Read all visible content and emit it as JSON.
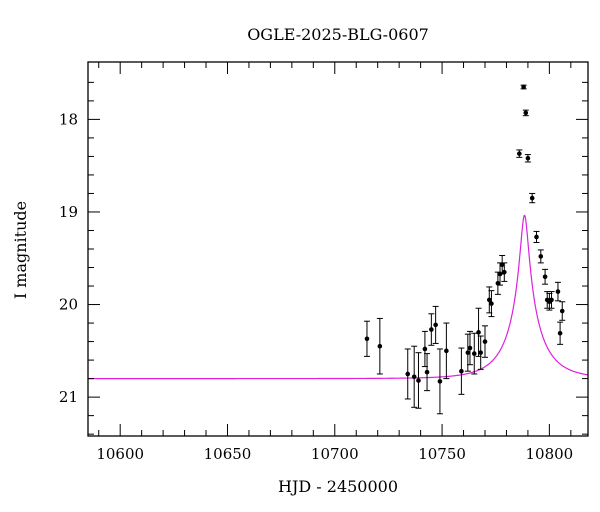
{
  "chart_data": {
    "type": "scatter",
    "title": "OGLE-2025-BLG-0607",
    "xlabel": "HJD - 2450000",
    "ylabel": "I magnitude",
    "xlim": [
      10585,
      10818
    ],
    "ylim": [
      21.42,
      17.38
    ],
    "y_inverted": true,
    "x_ticks": [
      10600,
      10650,
      10700,
      10750,
      10800
    ],
    "y_ticks": [
      18,
      19,
      20,
      21
    ],
    "grid": false,
    "legend": "none",
    "colors": {
      "points": "#000000",
      "model": "#e020e0"
    },
    "series": [
      {
        "type": "scatter-errorbars",
        "points": [
          {
            "x": 10715,
            "y": 20.37,
            "err": 0.19
          },
          {
            "x": 10721,
            "y": 20.45,
            "err": 0.3
          },
          {
            "x": 10734,
            "y": 20.75,
            "err": 0.27
          },
          {
            "x": 10737,
            "y": 20.78,
            "err": 0.33
          },
          {
            "x": 10739,
            "y": 20.82,
            "err": 0.3
          },
          {
            "x": 10742,
            "y": 20.48,
            "err": 0.19
          },
          {
            "x": 10743,
            "y": 20.73,
            "err": 0.2
          },
          {
            "x": 10745,
            "y": 20.27,
            "err": 0.17
          },
          {
            "x": 10747,
            "y": 20.22,
            "err": 0.2
          },
          {
            "x": 10749,
            "y": 20.83,
            "err": 0.35
          },
          {
            "x": 10752,
            "y": 20.5,
            "err": 0.3
          },
          {
            "x": 10759,
            "y": 20.72,
            "err": 0.25
          },
          {
            "x": 10762,
            "y": 20.52,
            "err": 0.2
          },
          {
            "x": 10763,
            "y": 20.47,
            "err": 0.18
          },
          {
            "x": 10765,
            "y": 20.53,
            "err": 0.22
          },
          {
            "x": 10767,
            "y": 20.3,
            "err": 0.26
          },
          {
            "x": 10768,
            "y": 20.52,
            "err": 0.18
          },
          {
            "x": 10770,
            "y": 20.4,
            "err": 0.17
          },
          {
            "x": 10772,
            "y": 19.95,
            "err": 0.14
          },
          {
            "x": 10773,
            "y": 19.99,
            "err": 0.14
          },
          {
            "x": 10776,
            "y": 19.77,
            "err": 0.12
          },
          {
            "x": 10777,
            "y": 19.67,
            "err": 0.12
          },
          {
            "x": 10778,
            "y": 19.57,
            "err": 0.1
          },
          {
            "x": 10779,
            "y": 19.65,
            "err": 0.1
          },
          {
            "x": 10786,
            "y": 18.37,
            "err": 0.04
          },
          {
            "x": 10788,
            "y": 17.65,
            "err": 0.02
          },
          {
            "x": 10789,
            "y": 17.93,
            "err": 0.03
          },
          {
            "x": 10790,
            "y": 18.42,
            "err": 0.04
          },
          {
            "x": 10792,
            "y": 18.85,
            "err": 0.05
          },
          {
            "x": 10794,
            "y": 19.27,
            "err": 0.06
          },
          {
            "x": 10796,
            "y": 19.48,
            "err": 0.07
          },
          {
            "x": 10798,
            "y": 19.7,
            "err": 0.08
          },
          {
            "x": 10799,
            "y": 19.95,
            "err": 0.09
          },
          {
            "x": 10800,
            "y": 19.97,
            "err": 0.09
          },
          {
            "x": 10801,
            "y": 19.95,
            "err": 0.09
          },
          {
            "x": 10804,
            "y": 19.86,
            "err": 0.1
          },
          {
            "x": 10805,
            "y": 20.31,
            "err": 0.12
          },
          {
            "x": 10806,
            "y": 20.07,
            "err": 0.1
          }
        ]
      },
      {
        "type": "model-line",
        "t0": 10788.4,
        "tE": 16.0,
        "u0": 0.11,
        "base_mag": 20.8,
        "source_mag": 21.55
      }
    ]
  }
}
